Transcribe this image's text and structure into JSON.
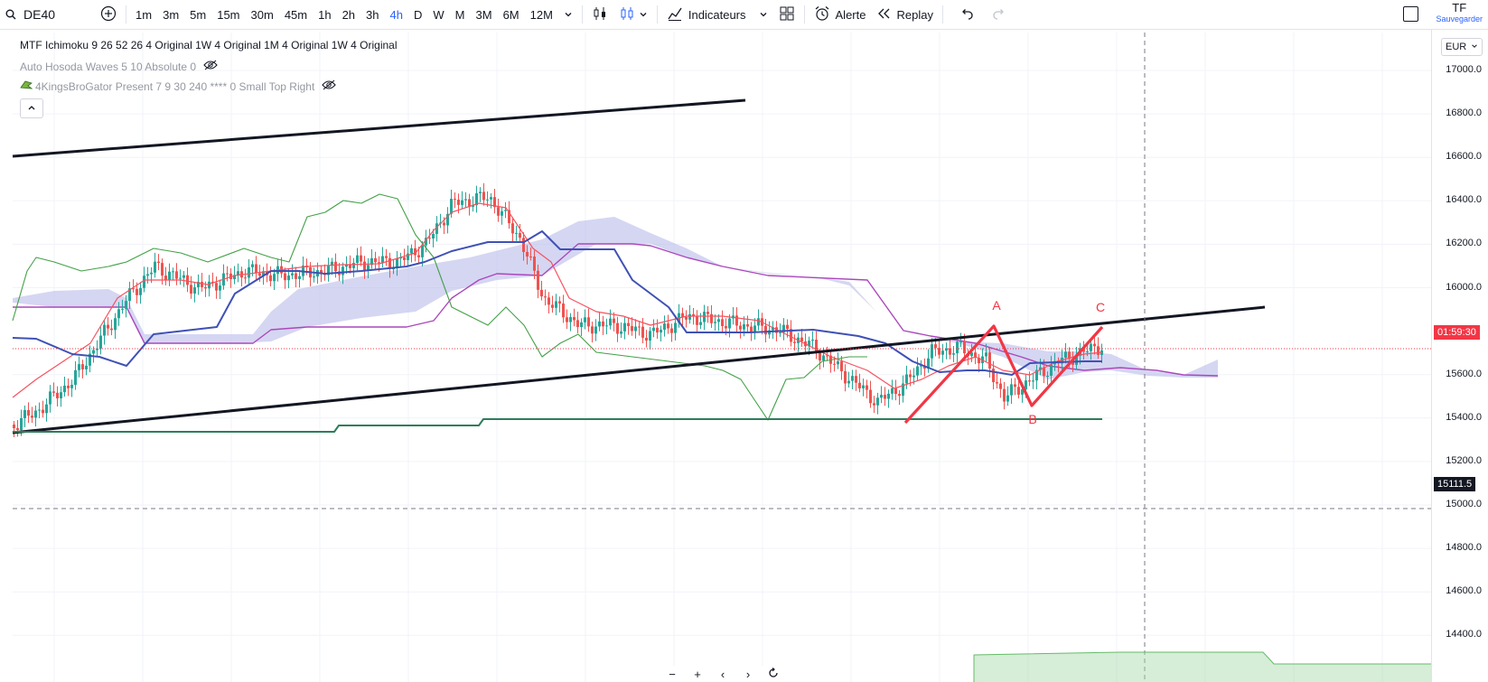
{
  "toolbar": {
    "symbol": "DE40",
    "intervals": [
      "1m",
      "3m",
      "5m",
      "15m",
      "30m",
      "45m",
      "1h",
      "2h",
      "3h",
      "4h",
      "D",
      "W",
      "M",
      "3M",
      "6M",
      "12M"
    ],
    "active_interval": "4h",
    "indicators_label": "Indicateurs",
    "alert_label": "Alerte",
    "replay_label": "Replay",
    "tf_title": "TF",
    "tf_sub": "Sauvegarder"
  },
  "legend": {
    "line1": "MTF Ichimoku 9 26 52 26 4 Original 1W 4 Original 1M 4 Original 1W 4 Original",
    "line2": "Auto Hosoda Waves 5 10 Absolute 0",
    "line3": "4KingsBroGator Present 7 9 30 240 **** 0 Small Top Right"
  },
  "price_axis": {
    "currency": "EUR",
    "labels": [
      "17000.0",
      "16800.0",
      "16600.0",
      "16400.0",
      "16200.0",
      "16000.0",
      "15600.0",
      "15400.0",
      "15200.0",
      "15000.0",
      "14800.0",
      "14600.0",
      "14400.0"
    ],
    "countdown": "01:59:30",
    "crosshair_price": "15111.5"
  },
  "wave_labels": [
    "A",
    "B",
    "C"
  ],
  "colors": {
    "accent": "#2962ff",
    "bull": "#26a69a",
    "bear": "#ef5350",
    "countdown_bg": "#f23645",
    "crosshair_bg": "#131722",
    "kijun": "#3f51b5",
    "tenkan": "#f7525f",
    "chikou": "#43a047",
    "cloud": "#b2b5e8",
    "senkou_b": "#ab47bc",
    "wave": "#f23645"
  },
  "icons": [
    "search-icon",
    "plus-circle-icon",
    "chevron-down-icon",
    "candle-icon",
    "indicators-icon",
    "layout-icon",
    "alarm-icon",
    "replay-icon",
    "undo-icon",
    "redo-icon",
    "eye-off-icon",
    "chevron-up-icon",
    "reset-icon"
  ],
  "nav": {
    "minus": "−",
    "plus": "+",
    "left": "‹",
    "right": "›"
  }
}
